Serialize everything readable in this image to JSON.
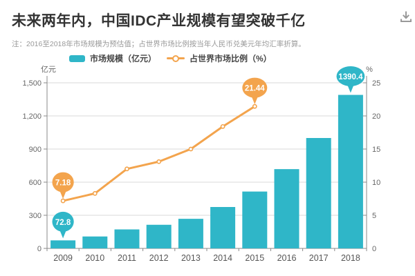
{
  "header": {
    "title": "未来两年内，中国IDC产业规模有望突破千亿",
    "note": "注：2016至2018年市场规模为预估值；占世界市场比例按当年人民币兑美元年均汇率折算。"
  },
  "toolbar": {
    "download_icon": "download"
  },
  "colors": {
    "bar_teal": "#2fb6c8",
    "line_orange": "#f3a44d",
    "title_text": "#333333",
    "note_text": "#999999",
    "axis_text": "#666666",
    "gridline": "#d9d9d9",
    "axis_line": "#888888"
  },
  "chart_data": {
    "type": "bar",
    "subtype": "combo-bar-line",
    "title": "未来两年内，中国IDC产业规模有望突破千亿",
    "categories": [
      "2009",
      "2010",
      "2011",
      "2012",
      "2013",
      "2014",
      "2015",
      "2016",
      "2017",
      "2018"
    ],
    "series": [
      {
        "name": "市场规模（亿元）",
        "type": "bar",
        "axis": "left",
        "color": "#2fb6c8",
        "values": [
          72.8,
          108,
          172,
          214,
          268,
          375,
          515,
          718,
          1000,
          1390.4
        ]
      },
      {
        "name": "占世界市场比例（%）",
        "type": "line",
        "axis": "right",
        "color": "#f3a44d",
        "values": [
          7.18,
          8.3,
          12.0,
          13.1,
          15.0,
          18.4,
          21.44,
          null,
          null,
          null
        ]
      }
    ],
    "left_axis": {
      "label": "亿元",
      "min": 0,
      "max": 1500,
      "step": 300
    },
    "right_axis": {
      "label": "%",
      "min": 0,
      "max": 25,
      "step": 5
    },
    "grid": true,
    "legend_position": "top",
    "annotations": [
      {
        "series": 0,
        "index": 0,
        "text": "72.8"
      },
      {
        "series": 0,
        "index": 9,
        "text": "1390.4"
      },
      {
        "series": 1,
        "index": 0,
        "text": "7.18"
      },
      {
        "series": 1,
        "index": 6,
        "text": "21.44"
      }
    ]
  }
}
